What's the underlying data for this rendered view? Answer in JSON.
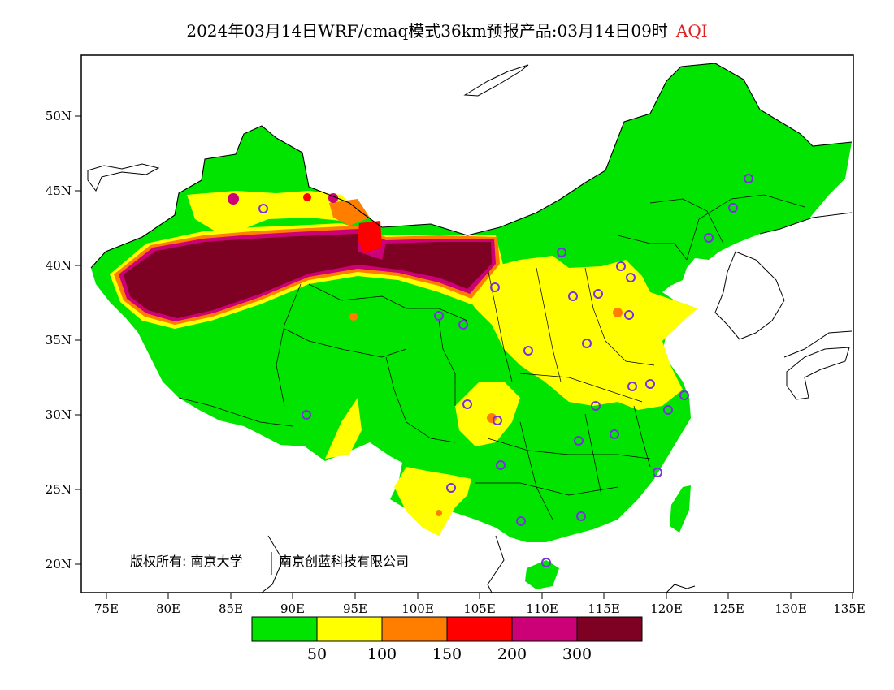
{
  "title": {
    "main": "2024年03月14日WRF/cmaq模式36km预报产品:03月14日09时",
    "variable": "AQI"
  },
  "axes": {
    "x_ticks": [
      "75E",
      "80E",
      "85E",
      "90E",
      "95E",
      "100E",
      "105E",
      "110E",
      "115E",
      "120E",
      "125E",
      "130E",
      "135E"
    ],
    "y_ticks": [
      "50N",
      "45N",
      "40N",
      "35N",
      "30N",
      "25N",
      "20N"
    ]
  },
  "copyright": {
    "left": "版权所有: 南京大学",
    "right": "南京创蓝科技有限公司"
  },
  "legend": {
    "colors": [
      "#00e400",
      "#ffff00",
      "#ff7e00",
      "#ff0000",
      "#cc0077",
      "#7e0023"
    ],
    "labels": [
      "50",
      "100",
      "150",
      "200",
      "300"
    ]
  },
  "colors": {
    "land_green": "#00e400",
    "moderate_yellow": "#ffff00",
    "usg_orange": "#ff7e00",
    "unhealthy_red": "#ff0000",
    "very_unhealthy_magenta": "#cc0077",
    "hazardous_maroon": "#7e0023",
    "station_marker": "#7a2fe0"
  }
}
